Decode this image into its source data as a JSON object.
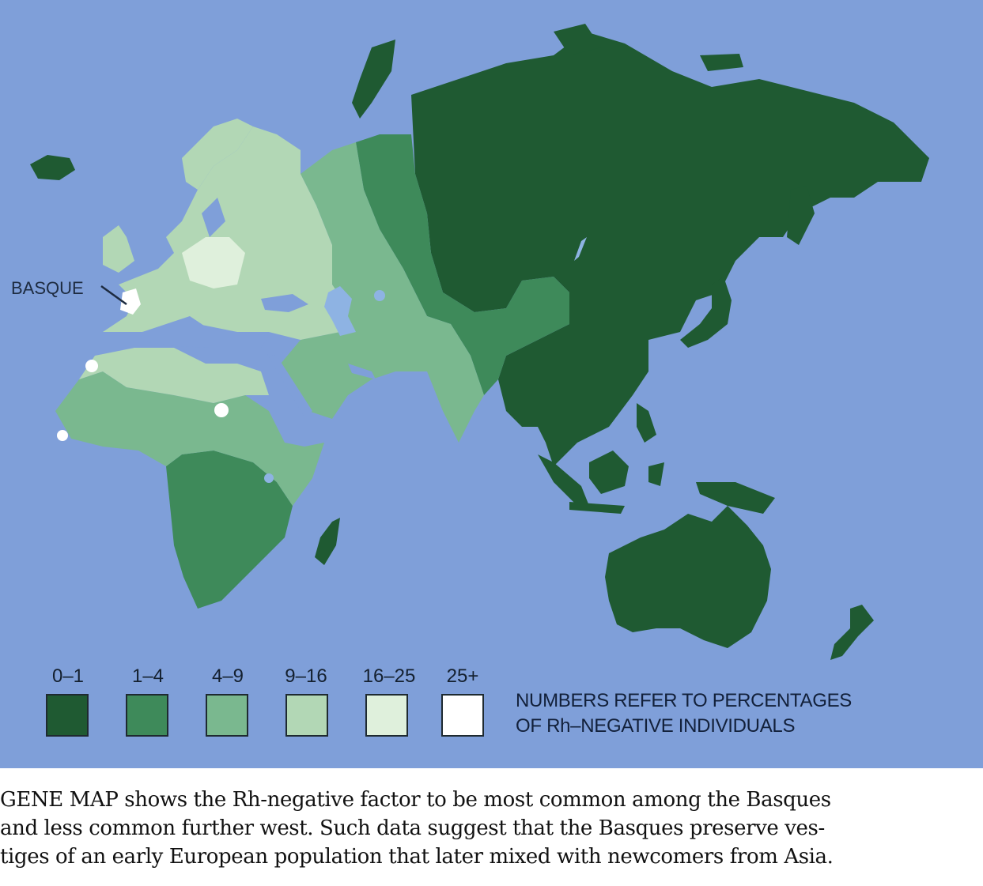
{
  "map": {
    "callout": "BASQUE",
    "colors": {
      "ocean": "#7f9fd9",
      "band_0_1": "#1f5a32",
      "band_1_4": "#3e8a5a",
      "band_4_9": "#7ab88f",
      "band_9_16": "#b2d7b5",
      "band_16_25": "#dff0dc",
      "band_25_plus": "#ffffff",
      "lakes": "#8eb3e3"
    }
  },
  "legend": {
    "items": [
      {
        "label": "0–1",
        "color": "#1f5a32"
      },
      {
        "label": "1–4",
        "color": "#3e8a5a"
      },
      {
        "label": "4–9",
        "color": "#7ab88f"
      },
      {
        "label": "9–16",
        "color": "#b2d7b5"
      },
      {
        "label": "16–25",
        "color": "#dff0dc"
      },
      {
        "label": "25+",
        "color": "#ffffff"
      }
    ],
    "note_line1": "NUMBERS REFER TO PERCENTAGES",
    "note_line2": "OF Rh–NEGATIVE INDIVIDUALS"
  },
  "caption": {
    "line1": "GENE MAP shows the Rh-negative factor to be most common among the Basques",
    "line2": "and less common further west. Such data suggest that the Basques preserve ves-",
    "line3": "tiges of an early European population that later mixed with newcomers from Asia."
  }
}
